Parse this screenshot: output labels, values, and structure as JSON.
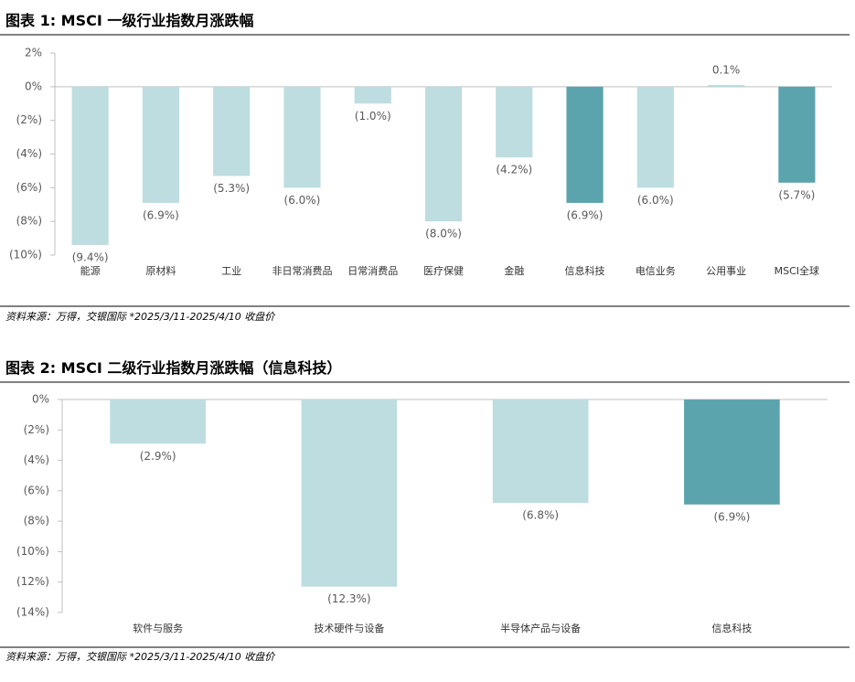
{
  "chart_data": [
    {
      "type": "bar",
      "title": "图表 1: MSCI 一级行业指数月涨跌幅",
      "categories": [
        "能源",
        "原材料",
        "工业",
        "非日常消费品",
        "日常消费品",
        "医疗保健",
        "金融",
        "信息科技",
        "电信业务",
        "公用事业",
        "MSCI全球"
      ],
      "values": [
        -9.4,
        -6.9,
        -5.3,
        -6.0,
        -1.0,
        -8.0,
        -4.2,
        -6.9,
        -6.0,
        0.1,
        -5.7
      ],
      "value_labels": [
        "(9.4%)",
        "(6.9%)",
        "(5.3%)",
        "(6.0%)",
        "(1.0%)",
        "(8.0%)",
        "(4.2%)",
        "(6.9%)",
        "(6.0%)",
        "0.1%",
        "(5.7%)"
      ],
      "colors": [
        "#bddde0",
        "#bddde0",
        "#bddde0",
        "#bddde0",
        "#bddde0",
        "#bddde0",
        "#bddde0",
        "#5ba3ad",
        "#bddde0",
        "#bddde0",
        "#5ba3ad"
      ],
      "ylim": [
        -10,
        2
      ],
      "yticks": [
        {
          "value": 2,
          "label": "2%"
        },
        {
          "value": 0,
          "label": "0%"
        },
        {
          "value": -2,
          "label": "(2%)"
        },
        {
          "value": -4,
          "label": "(4%)"
        },
        {
          "value": -6,
          "label": "(6%)"
        },
        {
          "value": -8,
          "label": "(8%)"
        },
        {
          "value": -10,
          "label": "(10%)"
        }
      ],
      "source": "资料来源：万得，交银国际   *2025/3/11-2025/4/10 收盘价"
    },
    {
      "type": "bar",
      "title": "图表 2: MSCI 二级行业指数月涨跌幅（信息科技）",
      "categories": [
        "软件与服务",
        "技术硬件与设备",
        "半导体产品与设备",
        "信息科技"
      ],
      "values": [
        -2.9,
        -12.3,
        -6.8,
        -6.9
      ],
      "value_labels": [
        "(2.9%)",
        "(12.3%)",
        "(6.8%)",
        "(6.9%)"
      ],
      "colors": [
        "#bddde0",
        "#bddde0",
        "#bddde0",
        "#5ba3ad"
      ],
      "ylim": [
        -14,
        0
      ],
      "yticks": [
        {
          "value": 0,
          "label": "0%"
        },
        {
          "value": -2,
          "label": "(2%)"
        },
        {
          "value": -4,
          "label": "(4%)"
        },
        {
          "value": -6,
          "label": "(6%)"
        },
        {
          "value": -8,
          "label": "(8%)"
        },
        {
          "value": -10,
          "label": "(10%)"
        },
        {
          "value": -12,
          "label": "(12%)"
        },
        {
          "value": -14,
          "label": "(14%)"
        }
      ],
      "source": "资料来源：万得，交银国际   *2025/3/11-2025/4/10 收盘价"
    }
  ]
}
